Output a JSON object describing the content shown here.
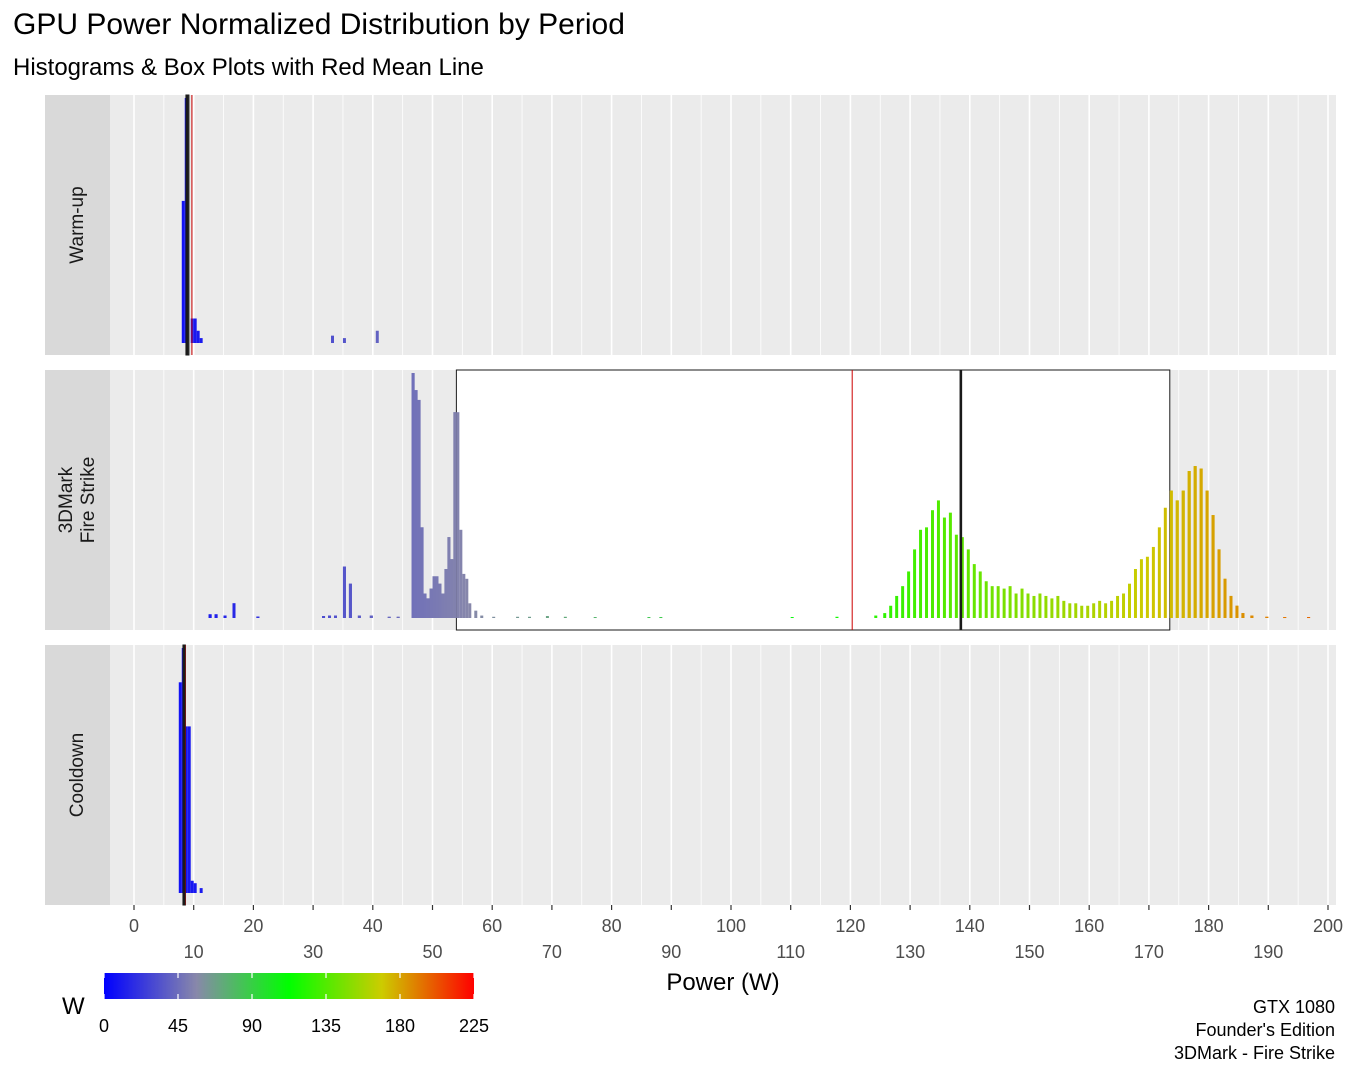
{
  "chart_data": {
    "type": "histogram with box plots (faceted)",
    "title": "GPU Power Normalized Distribution by Period",
    "subtitle": "Histograms & Box Plots with Red Mean Line",
    "xlabel": "Power (W)",
    "xlim": [
      -4,
      201
    ],
    "x_ticks": [
      0,
      10,
      20,
      30,
      40,
      50,
      60,
      70,
      80,
      90,
      100,
      110,
      120,
      130,
      140,
      150,
      160,
      170,
      180,
      190,
      200
    ],
    "x_tick_labels": [
      "0",
      "10",
      "20",
      "30",
      "40",
      "50",
      "60",
      "70",
      "80",
      "90",
      "100",
      "110",
      "120",
      "130",
      "140",
      "150",
      "160",
      "170",
      "180",
      "190",
      "200"
    ],
    "grid": true,
    "facets": [
      {
        "label": "Warm-up",
        "label_lines": [
          "Warm-up"
        ],
        "mean": 9.7,
        "box": {
          "q1": 8.7,
          "median": 8.9,
          "q3": 9.2
        },
        "bins": [
          [
            8.0,
            0.58
          ],
          [
            8.5,
            1.0
          ],
          [
            9.5,
            0.1
          ],
          [
            10.0,
            0.1
          ],
          [
            10.5,
            0.05
          ],
          [
            11.0,
            0.02
          ],
          [
            33.0,
            0.03
          ],
          [
            35.0,
            0.02
          ],
          [
            40.5,
            0.05
          ]
        ]
      },
      {
        "label": "3DMark Fire Strike",
        "label_lines": [
          "3DMark",
          "Fire Strike"
        ],
        "mean": 120.3,
        "box": {
          "q1": 54.0,
          "median": 138.5,
          "q3": 173.5
        },
        "bins": [
          [
            12.5,
            0.015
          ],
          [
            13.5,
            0.015
          ],
          [
            15.0,
            0.01
          ],
          [
            16.5,
            0.06
          ],
          [
            20.5,
            0.006
          ],
          [
            31.5,
            0.008
          ],
          [
            32.5,
            0.01
          ],
          [
            33.5,
            0.01
          ],
          [
            35.0,
            0.21
          ],
          [
            36.0,
            0.14
          ],
          [
            37.5,
            0.01
          ],
          [
            39.5,
            0.01
          ],
          [
            42.5,
            0.005
          ],
          [
            44.0,
            0.005
          ],
          [
            46.5,
            1.0
          ],
          [
            47.0,
            0.93
          ],
          [
            47.5,
            0.89
          ],
          [
            48.0,
            0.37
          ],
          [
            48.5,
            0.1
          ],
          [
            49.0,
            0.08
          ],
          [
            49.5,
            0.12
          ],
          [
            50.0,
            0.17
          ],
          [
            50.5,
            0.17
          ],
          [
            51.0,
            0.14
          ],
          [
            51.5,
            0.1
          ],
          [
            52.0,
            0.2
          ],
          [
            52.5,
            0.33
          ],
          [
            53.0,
            0.24
          ],
          [
            53.5,
            0.84
          ],
          [
            54.0,
            0.84
          ],
          [
            54.5,
            0.36
          ],
          [
            55.0,
            0.18
          ],
          [
            55.5,
            0.16
          ],
          [
            56.0,
            0.06
          ],
          [
            57.0,
            0.03
          ],
          [
            58.0,
            0.01
          ],
          [
            60.0,
            0.005
          ],
          [
            64.0,
            0.005
          ],
          [
            66.0,
            0.005
          ],
          [
            69.0,
            0.008
          ],
          [
            72.0,
            0.005
          ],
          [
            77.0,
            0.004
          ],
          [
            86.0,
            0.004
          ],
          [
            88.0,
            0.004
          ],
          [
            110.0,
            0.004
          ],
          [
            117.5,
            0.005
          ],
          [
            124.0,
            0.01
          ],
          [
            125.5,
            0.02
          ],
          [
            126.5,
            0.05
          ],
          [
            127.5,
            0.09
          ],
          [
            128.5,
            0.13
          ],
          [
            129.5,
            0.19
          ],
          [
            130.5,
            0.28
          ],
          [
            131.5,
            0.36
          ],
          [
            132.5,
            0.37
          ],
          [
            133.5,
            0.44
          ],
          [
            134.5,
            0.48
          ],
          [
            135.5,
            0.41
          ],
          [
            136.5,
            0.43
          ],
          [
            137.5,
            0.34
          ],
          [
            138.5,
            0.33
          ],
          [
            139.5,
            0.28
          ],
          [
            140.5,
            0.22
          ],
          [
            141.5,
            0.19
          ],
          [
            142.5,
            0.15
          ],
          [
            143.5,
            0.13
          ],
          [
            144.5,
            0.13
          ],
          [
            145.5,
            0.12
          ],
          [
            146.5,
            0.13
          ],
          [
            147.5,
            0.1
          ],
          [
            148.5,
            0.12
          ],
          [
            149.5,
            0.1
          ],
          [
            150.5,
            0.09
          ],
          [
            151.5,
            0.1
          ],
          [
            152.5,
            0.09
          ],
          [
            153.5,
            0.08
          ],
          [
            154.5,
            0.09
          ],
          [
            155.5,
            0.07
          ],
          [
            156.5,
            0.06
          ],
          [
            157.5,
            0.06
          ],
          [
            158.5,
            0.05
          ],
          [
            159.5,
            0.05
          ],
          [
            160.5,
            0.06
          ],
          [
            161.5,
            0.07
          ],
          [
            162.5,
            0.06
          ],
          [
            163.5,
            0.07
          ],
          [
            164.5,
            0.09
          ],
          [
            165.5,
            0.1
          ],
          [
            166.5,
            0.14
          ],
          [
            167.5,
            0.2
          ],
          [
            168.5,
            0.24
          ],
          [
            169.5,
            0.25
          ],
          [
            170.5,
            0.29
          ],
          [
            171.5,
            0.37
          ],
          [
            172.5,
            0.45
          ],
          [
            173.5,
            0.52
          ],
          [
            174.5,
            0.48
          ],
          [
            175.5,
            0.52
          ],
          [
            176.5,
            0.6
          ],
          [
            177.5,
            0.62
          ],
          [
            178.5,
            0.61
          ],
          [
            179.5,
            0.52
          ],
          [
            180.5,
            0.42
          ],
          [
            181.5,
            0.28
          ],
          [
            182.5,
            0.16
          ],
          [
            183.5,
            0.09
          ],
          [
            184.5,
            0.05
          ],
          [
            185.5,
            0.02
          ],
          [
            187.0,
            0.01
          ],
          [
            189.5,
            0.005
          ],
          [
            192.5,
            0.004
          ],
          [
            196.5,
            0.004
          ]
        ]
      },
      {
        "label": "Cooldown",
        "label_lines": [
          "Cooldown"
        ],
        "mean": 8.5,
        "box": {
          "q1": 8.2,
          "median": 8.4,
          "q3": 8.6
        },
        "bins": [
          [
            7.5,
            0.86
          ],
          [
            8.0,
            1.0
          ],
          [
            8.5,
            0.68
          ],
          [
            9.0,
            0.68
          ],
          [
            9.5,
            0.05
          ],
          [
            10.0,
            0.04
          ],
          [
            11.0,
            0.02
          ]
        ]
      }
    ],
    "legend": {
      "title": "W",
      "type": "colorbar",
      "position": "bottom-left",
      "range": [
        0,
        225
      ],
      "ticks": [
        0,
        45,
        90,
        135,
        180,
        225
      ],
      "tick_labels": [
        "0",
        "45",
        "90",
        "135",
        "180",
        "225"
      ],
      "colors": [
        "#0000ff",
        "#8888aa",
        "#00ff00",
        "#cccc00",
        "#ff0000"
      ]
    },
    "caption": [
      "GTX 1080",
      "Founder's Edition",
      "3DMark - Fire Strike"
    ],
    "mean_line_color": "#cc0000"
  }
}
